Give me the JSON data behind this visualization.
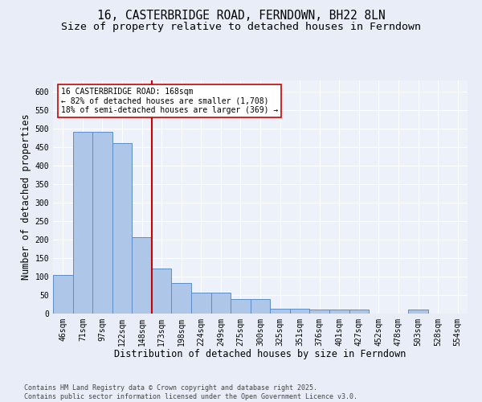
{
  "title_line1": "16, CASTERBRIDGE ROAD, FERNDOWN, BH22 8LN",
  "title_line2": "Size of property relative to detached houses in Ferndown",
  "xlabel": "Distribution of detached houses by size in Ferndown",
  "ylabel": "Number of detached properties",
  "categories": [
    "46sqm",
    "71sqm",
    "97sqm",
    "122sqm",
    "148sqm",
    "173sqm",
    "198sqm",
    "224sqm",
    "249sqm",
    "275sqm",
    "300sqm",
    "325sqm",
    "351sqm",
    "376sqm",
    "401sqm",
    "427sqm",
    "452sqm",
    "478sqm",
    "503sqm",
    "528sqm",
    "554sqm"
  ],
  "values": [
    105,
    490,
    490,
    460,
    207,
    121,
    82,
    57,
    57,
    39,
    39,
    14,
    14,
    10,
    10,
    10,
    0,
    0,
    11,
    0,
    0
  ],
  "bar_color": "#aec6e8",
  "bar_edge_color": "#5b8dc8",
  "vline_x_index": 5,
  "vline_color": "#cc0000",
  "annotation_text": "16 CASTERBRIDGE ROAD: 168sqm\n← 82% of detached houses are smaller (1,708)\n18% of semi-detached houses are larger (369) →",
  "annotation_box_color": "#cc0000",
  "ylim": [
    0,
    630
  ],
  "yticks": [
    0,
    50,
    100,
    150,
    200,
    250,
    300,
    350,
    400,
    450,
    500,
    550,
    600
  ],
  "bg_color": "#e8edf7",
  "plot_bg_color": "#edf1f9",
  "grid_color": "#ffffff",
  "footer_text": "Contains HM Land Registry data © Crown copyright and database right 2025.\nContains public sector information licensed under the Open Government Licence v3.0.",
  "title_fontsize": 10.5,
  "subtitle_fontsize": 9.5,
  "axis_label_fontsize": 8.5,
  "tick_fontsize": 7,
  "annotation_fontsize": 7,
  "footer_fontsize": 6
}
